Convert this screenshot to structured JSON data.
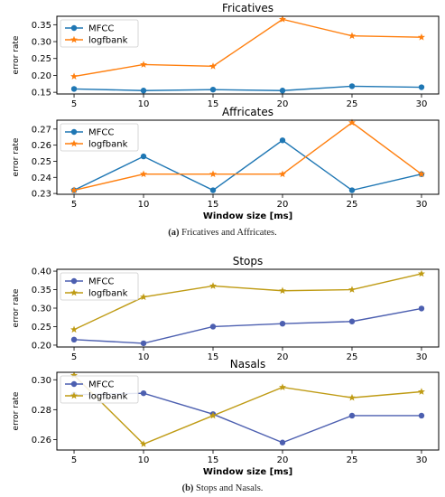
{
  "captions": [
    {
      "label": "(a)",
      "text": "Fricatives and Affricates."
    },
    {
      "label": "(b)",
      "text": "Stops and Nasals."
    }
  ],
  "chart_data": [
    {
      "type": "line",
      "title": "Fricatives",
      "xlabel": "",
      "ylabel": "error rate",
      "x": [
        5,
        10,
        15,
        20,
        25,
        30
      ],
      "ylim": [
        0.145,
        0.375
      ],
      "yticks": [
        0.15,
        0.2,
        0.25,
        0.3,
        0.35
      ],
      "ytick_decimals": 2,
      "legend": "top-left",
      "series": [
        {
          "name": "MFCC",
          "color": "#1f77b4",
          "marker": "circle",
          "values": [
            0.16,
            0.155,
            0.158,
            0.155,
            0.168,
            0.165
          ]
        },
        {
          "name": "logfbank",
          "color": "#ff7f0e",
          "marker": "star",
          "values": [
            0.197,
            0.232,
            0.227,
            0.366,
            0.317,
            0.313
          ]
        }
      ]
    },
    {
      "type": "line",
      "title": "Affricates",
      "xlabel": "Window size [ms]",
      "ylabel": "error rate",
      "x": [
        5,
        10,
        15,
        20,
        25,
        30
      ],
      "ylim": [
        0.2295,
        0.2755
      ],
      "yticks": [
        0.23,
        0.24,
        0.25,
        0.26,
        0.27
      ],
      "ytick_decimals": 2,
      "legend": "top-left",
      "series": [
        {
          "name": "MFCC",
          "color": "#1f77b4",
          "marker": "circle",
          "values": [
            0.232,
            0.253,
            0.232,
            0.263,
            0.232,
            0.242
          ]
        },
        {
          "name": "logfbank",
          "color": "#ff7f0e",
          "marker": "star",
          "values": [
            0.232,
            0.242,
            0.242,
            0.242,
            0.274,
            0.242
          ]
        }
      ]
    },
    {
      "type": "line",
      "title": "Stops",
      "xlabel": "",
      "ylabel": "error rate",
      "x": [
        5,
        10,
        15,
        20,
        25,
        30
      ],
      "ylim": [
        0.195,
        0.405
      ],
      "yticks": [
        0.2,
        0.25,
        0.3,
        0.35,
        0.4
      ],
      "ytick_decimals": 2,
      "legend": "top-left",
      "series": [
        {
          "name": "MFCC",
          "color": "#4c5fb0",
          "marker": "circle",
          "values": [
            0.215,
            0.205,
            0.25,
            0.258,
            0.264,
            0.299
          ]
        },
        {
          "name": "logfbank",
          "color": "#bf9b14",
          "marker": "star",
          "values": [
            0.242,
            0.33,
            0.36,
            0.347,
            0.35,
            0.393
          ]
        }
      ]
    },
    {
      "type": "line",
      "title": "Nasals",
      "xlabel": "Window size [ms]",
      "ylabel": "error rate",
      "x": [
        5,
        10,
        15,
        20,
        25,
        30
      ],
      "ylim": [
        0.253,
        0.305
      ],
      "yticks": [
        0.26,
        0.28,
        0.3
      ],
      "ytick_decimals": 2,
      "legend": "top-left",
      "series": [
        {
          "name": "MFCC",
          "color": "#4c5fb0",
          "marker": "circle",
          "values": [
            0.29,
            0.291,
            0.277,
            0.258,
            0.276,
            0.276
          ]
        },
        {
          "name": "logfbank",
          "color": "#bf9b14",
          "marker": "star",
          "values": [
            0.303,
            0.257,
            0.276,
            0.295,
            0.288,
            0.292
          ]
        }
      ]
    }
  ]
}
